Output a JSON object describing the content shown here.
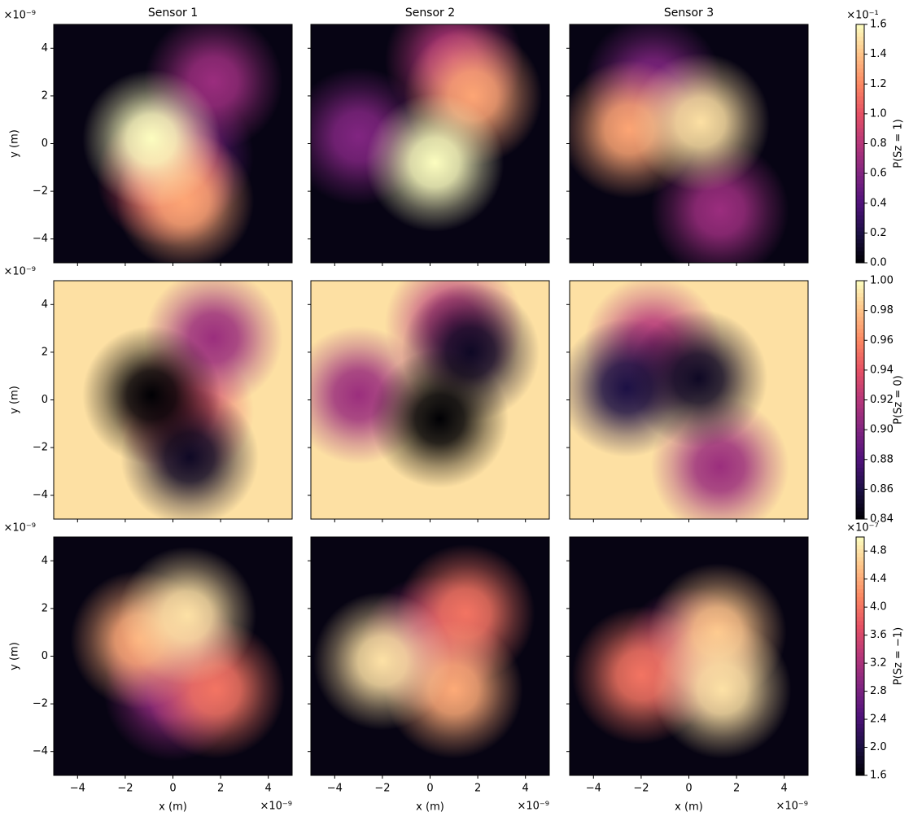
{
  "chart_data": {
    "type": "contour",
    "colormap": "magma",
    "titles": [
      "Sensor 1",
      "Sensor 2",
      "Sensor 3"
    ],
    "xlabel": "x (m)",
    "ylabel": "y (m)",
    "x_offset": "×10⁻⁹",
    "y_offset": "×10⁻⁹",
    "xlim": [
      -5,
      5
    ],
    "ylim": [
      -5,
      5
    ],
    "xticks": [
      {
        "value": -4,
        "label": "−4"
      },
      {
        "value": -2,
        "label": "−2"
      },
      0,
      2,
      4
    ],
    "yticks": [
      {
        "value": -4,
        "label": "−4"
      },
      {
        "value": -2,
        "label": "−2"
      },
      0,
      2,
      4
    ],
    "rows": [
      {
        "colorbar": {
          "label": "P(Sz = 1)",
          "offset": "×10⁻¹",
          "lim": [
            0,
            1.6
          ],
          "ticks": [
            {
              "value": 0,
              "label": "0.0"
            },
            0.2,
            0.4,
            0.6,
            0.8,
            {
              "value": 1,
              "label": "1.0"
            },
            1.2,
            1.4,
            1.6
          ]
        },
        "panels": [
          {
            "background": 0.05,
            "peaks": [
              {
                "x": 0.5,
                "y": -0.5,
                "value": 0.5
              },
              {
                "x": 1.7,
                "y": 2.6,
                "value": 0.7
              },
              {
                "x": -0.3,
                "y": -1.4,
                "value": 1.0
              },
              {
                "x": 0.5,
                "y": -2.4,
                "value": 1.3
              },
              {
                "x": -0.9,
                "y": 0.2,
                "value": 1.6
              }
            ]
          },
          {
            "background": 0.05,
            "peaks": [
              {
                "x": -3,
                "y": 0.3,
                "value": 0.6
              },
              {
                "x": 1,
                "y": 3.5,
                "value": 0.8
              },
              {
                "x": 1.8,
                "y": 2,
                "value": 1.3
              },
              {
                "x": 0.2,
                "y": -0.8,
                "value": 1.6
              }
            ]
          },
          {
            "background": 0.05,
            "peaks": [
              {
                "x": -1.5,
                "y": 2.5,
                "value": 0.6
              },
              {
                "x": 1.3,
                "y": -2.8,
                "value": 0.7
              },
              {
                "x": -2.5,
                "y": 0.6,
                "value": 1.3
              },
              {
                "x": 0.5,
                "y": 0.9,
                "value": 1.5
              }
            ]
          }
        ]
      },
      {
        "colorbar": {
          "label": "P(Sz = 0)",
          "lim": [
            0.84,
            1
          ],
          "ticks": [
            0.84,
            0.86,
            0.88,
            {
              "value": 0.9,
              "label": "0.90"
            },
            0.92,
            0.94,
            0.96,
            0.98,
            {
              "value": 1,
              "label": "1.00"
            }
          ]
        },
        "panels": [
          {
            "background": 0.99,
            "peaks": [
              {
                "x": 0.5,
                "y": -0.5,
                "value": 0.94
              },
              {
                "x": 1.7,
                "y": 2.6,
                "value": 0.91
              },
              {
                "x": 0.7,
                "y": -2.4,
                "value": 0.85
              },
              {
                "x": -0.9,
                "y": 0.2,
                "value": 0.84
              }
            ]
          },
          {
            "background": 0.99,
            "peaks": [
              {
                "x": -3,
                "y": 0.2,
                "value": 0.91
              },
              {
                "x": 1,
                "y": 3.2,
                "value": 0.92
              },
              {
                "x": 1.7,
                "y": 2,
                "value": 0.85
              },
              {
                "x": 0.4,
                "y": -0.8,
                "value": 0.84
              }
            ]
          },
          {
            "background": 0.99,
            "peaks": [
              {
                "x": 1.3,
                "y": -2.8,
                "value": 0.91
              },
              {
                "x": -1.5,
                "y": 2.3,
                "value": 0.92
              },
              {
                "x": -2.6,
                "y": 0.5,
                "value": 0.86
              },
              {
                "x": 0.4,
                "y": 0.9,
                "value": 0.85
              }
            ]
          }
        ]
      },
      {
        "colorbar": {
          "label": "P(Sz = −1)",
          "offset": "×10⁻⁷",
          "lim": [
            1.6,
            5
          ],
          "ticks": [
            1.6,
            {
              "value": 2,
              "label": "2.0"
            },
            2.4,
            2.8,
            3.2,
            3.6,
            {
              "value": 4,
              "label": "4.0"
            },
            4.4,
            4.8
          ]
        },
        "panels": [
          {
            "background": 1.7,
            "peaks": [
              {
                "x": 0,
                "y": 0,
                "value": 3.2
              },
              {
                "x": 0,
                "y": -1.5,
                "value": 3.0
              },
              {
                "x": 1.8,
                "y": -1.4,
                "value": 4.0
              },
              {
                "x": -1.4,
                "y": 0.7,
                "value": 4.4
              },
              {
                "x": 0.6,
                "y": 1.7,
                "value": 4.8
              }
            ]
          },
          {
            "background": 1.7,
            "peaks": [
              {
                "x": 0,
                "y": 0.5,
                "value": 3.2
              },
              {
                "x": 1.5,
                "y": 1.8,
                "value": 4.0
              },
              {
                "x": 1,
                "y": -1.4,
                "value": 4.4
              },
              {
                "x": -2,
                "y": -0.2,
                "value": 4.8
              }
            ]
          },
          {
            "background": 1.7,
            "peaks": [
              {
                "x": 0,
                "y": 0,
                "value": 3.2
              },
              {
                "x": -2,
                "y": -0.8,
                "value": 4.0
              },
              {
                "x": 1.2,
                "y": 1,
                "value": 4.6
              },
              {
                "x": 1.4,
                "y": -1.4,
                "value": 4.8
              }
            ]
          }
        ]
      }
    ]
  }
}
